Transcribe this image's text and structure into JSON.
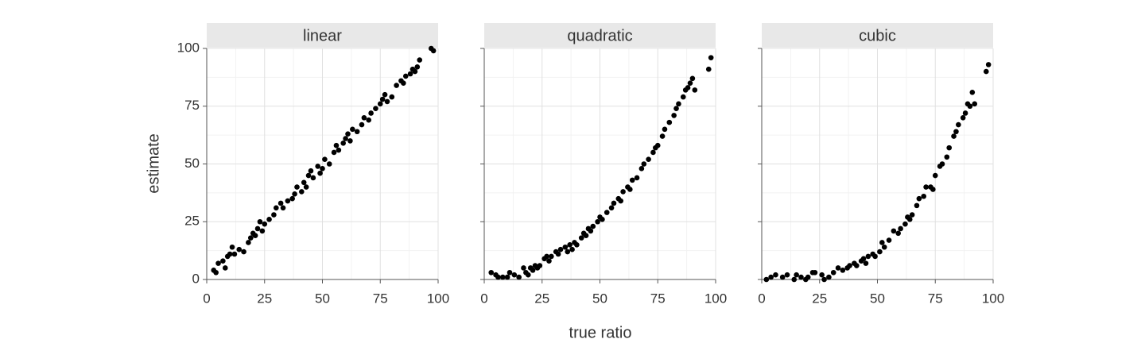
{
  "chart_data": [
    {
      "type": "scatter",
      "title": "linear",
      "color": "#000000",
      "grid": true,
      "xlim": [
        0,
        100
      ],
      "ylim": [
        0,
        100
      ],
      "xticks": [
        0,
        25,
        50,
        75,
        100
      ],
      "yticks": [
        0,
        25,
        50,
        75,
        100
      ],
      "minor_xticks": [
        12.5,
        37.5,
        62.5,
        87.5
      ],
      "minor_yticks": [
        12.5,
        37.5,
        62.5,
        87.5
      ],
      "x": [
        3,
        4,
        5,
        7,
        8,
        9,
        10,
        11,
        12,
        14,
        16,
        18,
        19,
        20,
        21,
        22,
        23,
        24,
        25,
        27,
        29,
        30,
        32,
        33,
        35,
        37,
        38,
        39,
        41,
        42,
        43,
        44,
        45,
        46,
        48,
        49,
        50,
        51,
        53,
        55,
        56,
        57,
        59,
        60,
        61,
        62,
        63,
        65,
        67,
        68,
        70,
        71,
        73,
        75,
        76,
        77,
        78,
        80,
        82,
        84,
        85,
        86,
        88,
        89,
        90,
        91,
        92,
        97,
        98
      ],
      "values": [
        4,
        3,
        7,
        8,
        5,
        10,
        11,
        14,
        11,
        13,
        12,
        16,
        18,
        20,
        19,
        22,
        25,
        21,
        24,
        26,
        28,
        31,
        33,
        31,
        34,
        35,
        37,
        40,
        38,
        42,
        40,
        45,
        47,
        44,
        49,
        46,
        48,
        52,
        50,
        55,
        58,
        56,
        59,
        61,
        63,
        60,
        65,
        64,
        67,
        70,
        69,
        72,
        74,
        76,
        78,
        80,
        77,
        79,
        84,
        86,
        85,
        88,
        89,
        91,
        90,
        92,
        95,
        100,
        99
      ]
    },
    {
      "type": "scatter",
      "title": "quadratic",
      "color": "#000000",
      "grid": true,
      "xlim": [
        0,
        100
      ],
      "ylim": [
        0,
        100
      ],
      "xticks": [
        0,
        25,
        50,
        75,
        100
      ],
      "yticks": [
        0,
        25,
        50,
        75,
        100
      ],
      "minor_xticks": [
        12.5,
        37.5,
        62.5,
        87.5
      ],
      "minor_yticks": [
        12.5,
        37.5,
        62.5,
        87.5
      ],
      "x": [
        3,
        5,
        6,
        8,
        10,
        11,
        13,
        15,
        17,
        18,
        19,
        20,
        21,
        22,
        23,
        24,
        26,
        27,
        28,
        29,
        31,
        32,
        33,
        35,
        36,
        37,
        38,
        39,
        40,
        42,
        43,
        44,
        45,
        46,
        47,
        49,
        50,
        51,
        53,
        55,
        56,
        58,
        59,
        60,
        62,
        63,
        64,
        66,
        68,
        69,
        71,
        73,
        74,
        75,
        77,
        78,
        80,
        82,
        83,
        84,
        86,
        87,
        88,
        89,
        90,
        91,
        97,
        98
      ],
      "values": [
        3,
        2,
        1,
        1,
        1,
        3,
        2,
        1,
        5,
        3,
        2,
        5,
        4,
        6,
        5,
        6,
        9,
        10,
        8,
        10,
        12,
        11,
        13,
        14,
        12,
        15,
        13,
        16,
        15,
        18,
        20,
        19,
        22,
        21,
        23,
        25,
        27,
        26,
        29,
        31,
        33,
        35,
        34,
        38,
        40,
        39,
        43,
        44,
        48,
        50,
        52,
        55,
        57,
        58,
        62,
        65,
        68,
        71,
        74,
        76,
        79,
        82,
        83,
        85,
        87,
        82,
        91,
        96
      ]
    },
    {
      "type": "scatter",
      "title": "cubic",
      "color": "#000000",
      "grid": true,
      "xlim": [
        0,
        100
      ],
      "ylim": [
        0,
        100
      ],
      "xticks": [
        0,
        25,
        50,
        75,
        100
      ],
      "yticks": [
        0,
        25,
        50,
        75,
        100
      ],
      "minor_xticks": [
        12.5,
        37.5,
        62.5,
        87.5
      ],
      "minor_yticks": [
        12.5,
        37.5,
        62.5,
        87.5
      ],
      "x": [
        2,
        4,
        6,
        9,
        11,
        14,
        15,
        17,
        19,
        20,
        22,
        23,
        26,
        27,
        29,
        31,
        33,
        35,
        37,
        38,
        40,
        41,
        43,
        44,
        45,
        46,
        48,
        49,
        51,
        52,
        53,
        55,
        57,
        59,
        60,
        62,
        63,
        64,
        65,
        67,
        68,
        70,
        71,
        73,
        74,
        75,
        77,
        78,
        80,
        81,
        83,
        84,
        85,
        87,
        88,
        89,
        90,
        91,
        92,
        97,
        98
      ],
      "values": [
        0,
        1,
        2,
        1,
        2,
        0,
        2,
        1,
        0,
        1,
        3,
        3,
        2,
        0,
        1,
        3,
        5,
        4,
        5,
        6,
        7,
        6,
        8,
        9,
        7,
        10,
        11,
        10,
        12,
        16,
        14,
        17,
        21,
        20,
        22,
        24,
        27,
        26,
        28,
        32,
        35,
        36,
        40,
        40,
        39,
        45,
        49,
        50,
        53,
        57,
        62,
        64,
        67,
        70,
        72,
        76,
        75,
        81,
        76,
        90,
        93
      ]
    }
  ],
  "xlabel": "true ratio",
  "ylabel": "estimate"
}
